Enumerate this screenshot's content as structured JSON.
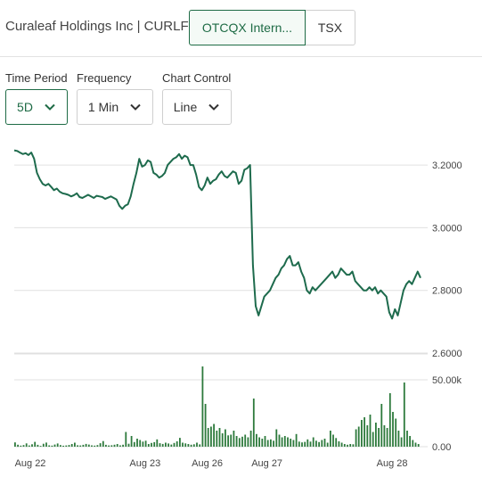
{
  "header": {
    "company": "Curaleaf Holdings Inc | CURLF",
    "tabs": [
      {
        "label": "OTCQX Intern...",
        "active": true
      },
      {
        "label": "TSX",
        "active": false
      }
    ]
  },
  "controls": {
    "time_period": {
      "label": "Time Period",
      "value": "5D"
    },
    "frequency": {
      "label": "Frequency",
      "value": "1 Min"
    },
    "chart_control": {
      "label": "Chart Control",
      "value": "Line"
    }
  },
  "colors": {
    "line": "#1e6b4d",
    "volume": "#2d7a3c",
    "accent": "#1e6b45",
    "grid": "#e0e0e0"
  },
  "icons": {
    "dropdown": "chevron-down-icon"
  },
  "chart_data": [
    {
      "type": "line",
      "title": "",
      "xlabel": "",
      "ylabel": "",
      "ylim": [
        2.6,
        3.3
      ],
      "yticks": [
        "3.2000",
        "3.0000",
        "2.8000",
        "2.6000"
      ],
      "xticks": [
        "Aug 22",
        "Aug 23",
        "Aug 26",
        "Aug 27",
        "Aug 28"
      ],
      "grid": true,
      "series": [
        {
          "values": [
            3.247,
            3.245,
            3.24,
            3.235,
            3.238,
            3.232,
            3.24,
            3.22,
            3.175,
            3.155,
            3.14,
            3.135,
            3.14,
            3.13,
            3.12,
            3.125,
            3.115,
            3.11,
            3.108,
            3.105,
            3.1,
            3.104,
            3.11,
            3.098,
            3.095,
            3.1,
            3.105,
            3.1,
            3.095,
            3.102,
            3.1,
            3.098,
            3.092,
            3.096,
            3.1,
            3.095,
            3.09,
            3.07,
            3.06,
            3.07,
            3.075,
            3.1,
            3.14,
            3.175,
            3.22,
            3.195,
            3.2,
            3.215,
            3.21,
            3.175,
            3.17,
            3.16,
            3.165,
            3.175,
            3.2,
            3.21,
            3.22,
            3.225,
            3.235,
            3.22,
            3.23,
            3.225,
            3.2,
            3.2,
            3.17,
            3.13,
            3.12,
            3.135,
            3.16,
            3.14,
            3.15,
            3.155,
            3.17,
            3.18,
            3.165,
            3.16,
            3.17,
            3.18,
            3.175,
            3.14,
            3.15,
            3.185,
            3.19,
            3.2,
            2.88,
            2.75,
            2.72,
            2.75,
            2.78,
            2.79,
            2.8,
            2.82,
            2.84,
            2.85,
            2.87,
            2.88,
            2.9,
            2.91,
            2.88,
            2.88,
            2.89,
            2.86,
            2.84,
            2.8,
            2.79,
            2.81,
            2.8,
            2.81,
            2.82,
            2.83,
            2.84,
            2.85,
            2.86,
            2.84,
            2.85,
            2.87,
            2.86,
            2.85,
            2.85,
            2.86,
            2.83,
            2.82,
            2.81,
            2.8,
            2.8,
            2.81,
            2.8,
            2.81,
            2.79,
            2.8,
            2.79,
            2.78,
            2.73,
            2.71,
            2.74,
            2.72,
            2.76,
            2.8,
            2.82,
            2.83,
            2.82,
            2.84,
            2.86,
            2.84
          ]
        }
      ]
    },
    {
      "type": "bar",
      "title": "",
      "ylim": [
        0,
        60000
      ],
      "yticks": [
        "50.00k",
        "0.00"
      ],
      "grid": true,
      "values": [
        3200,
        1500,
        800,
        1200,
        2500,
        900,
        1800,
        3600,
        1400,
        600,
        2200,
        3100,
        1000,
        800,
        1600,
        2400,
        1200,
        700,
        900,
        1300,
        2000,
        3000,
        1100,
        900,
        1400,
        2100,
        1600,
        1000,
        800,
        1200,
        2600,
        4200,
        1400,
        900,
        1100,
        1500,
        2000,
        1000,
        1500,
        11000,
        2200,
        8000,
        3500,
        6000,
        5000,
        3800,
        4500,
        2000,
        2800,
        3400,
        5500,
        2600,
        2100,
        3000,
        2400,
        1600,
        2800,
        4000,
        6600,
        3000,
        2500,
        2000,
        1500,
        1800,
        3000,
        1700,
        60000,
        32000,
        14000,
        15000,
        17000,
        12000,
        14000,
        10000,
        13000,
        8500,
        9000,
        12000,
        8000,
        6500,
        7500,
        9000,
        7000,
        12000,
        36000,
        9500,
        7000,
        6000,
        8000,
        5000,
        5500,
        4500,
        13000,
        9000,
        7000,
        8000,
        7000,
        6000,
        5000,
        9500,
        3800,
        3200,
        3600,
        5500,
        3800,
        7000,
        4500,
        3500,
        5000,
        6000,
        3000,
        12000,
        9000,
        6500,
        4000,
        3000,
        2000,
        1500,
        2000,
        1800,
        13000,
        15000,
        20000,
        22000,
        16000,
        24000,
        11000,
        18000,
        14000,
        32000,
        16000,
        14000,
        40000,
        26000,
        21000,
        12000,
        7000,
        48000,
        12000,
        8000,
        5000,
        3000,
        2000
      ]
    }
  ]
}
